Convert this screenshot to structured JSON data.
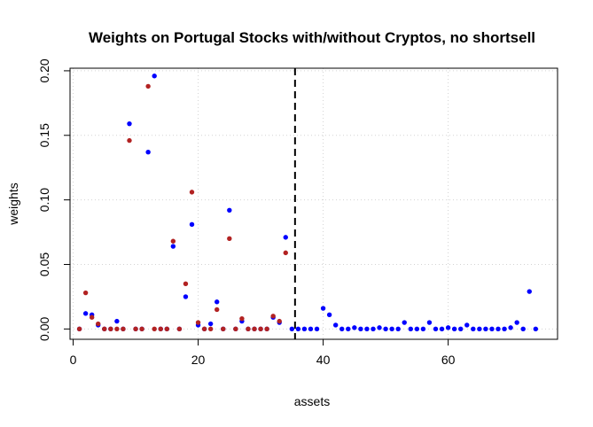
{
  "chart_data": {
    "type": "scatter",
    "title": "Weights on Portugal Stocks with/without Cryptos, no shortsell",
    "xlabel": "assets",
    "ylabel": "weights",
    "xlim": [
      -0.5,
      77.5
    ],
    "ylim": [
      -0.008,
      0.202
    ],
    "xticks": [
      0,
      20,
      40,
      60
    ],
    "yticks": [
      0.0,
      0.05,
      0.1,
      0.15,
      0.2
    ],
    "xtick_labels": [
      "0",
      "20",
      "40",
      "60"
    ],
    "ytick_labels": [
      "0.00",
      "0.05",
      "0.10",
      "0.15",
      "0.20"
    ],
    "grid": true,
    "vline": 35.5,
    "series": [
      {
        "color": "#0000ff",
        "x": [
          1,
          2,
          3,
          4,
          5,
          6,
          7,
          8,
          9,
          10,
          11,
          12,
          13,
          14,
          15,
          16,
          17,
          18,
          19,
          20,
          21,
          22,
          23,
          24,
          25,
          26,
          27,
          28,
          29,
          30,
          31,
          32,
          33,
          34,
          35,
          36,
          37,
          38,
          39,
          40,
          41,
          42,
          43,
          44,
          45,
          46,
          47,
          48,
          49,
          50,
          51,
          52,
          53,
          54,
          55,
          56,
          57,
          58,
          59,
          60,
          61,
          62,
          63,
          64,
          65,
          66,
          67,
          68,
          69,
          70,
          71,
          72,
          73,
          74
        ],
        "y": [
          0,
          0.012,
          0.011,
          0.003,
          0,
          0,
          0.006,
          0,
          0.159,
          0,
          0,
          0.137,
          0.196,
          0,
          0,
          0.064,
          0,
          0.025,
          0.081,
          0.003,
          0,
          0.004,
          0.021,
          0,
          0.092,
          0,
          0.006,
          0,
          0,
          0,
          0,
          0.009,
          0.005,
          0.071,
          0,
          0,
          0,
          0,
          0,
          0.016,
          0.011,
          0.003,
          0,
          0,
          0.001,
          0,
          0,
          0,
          0.001,
          0,
          0,
          0,
          0.005,
          0,
          0,
          0,
          0.005,
          0,
          0,
          0.001,
          0,
          0,
          0.003,
          0,
          0,
          0,
          0,
          0,
          0,
          0.001,
          0.005,
          0,
          0.029,
          0
        ]
      },
      {
        "color": "#b22222",
        "x": [
          1,
          2,
          3,
          4,
          5,
          6,
          7,
          8,
          9,
          10,
          11,
          12,
          13,
          14,
          15,
          16,
          17,
          18,
          19,
          20,
          21,
          22,
          23,
          24,
          25,
          26,
          27,
          28,
          29,
          30,
          31,
          32,
          33,
          34
        ],
        "y": [
          0,
          0.028,
          0.009,
          0.004,
          0,
          0,
          0,
          0,
          0.146,
          0,
          0,
          0.188,
          0,
          0,
          0,
          0.068,
          0,
          0.035,
          0.106,
          0.005,
          0,
          0,
          0.015,
          0,
          0.07,
          0,
          0.008,
          0,
          0,
          0,
          0,
          0.01,
          0.006,
          0.059
        ]
      }
    ]
  }
}
